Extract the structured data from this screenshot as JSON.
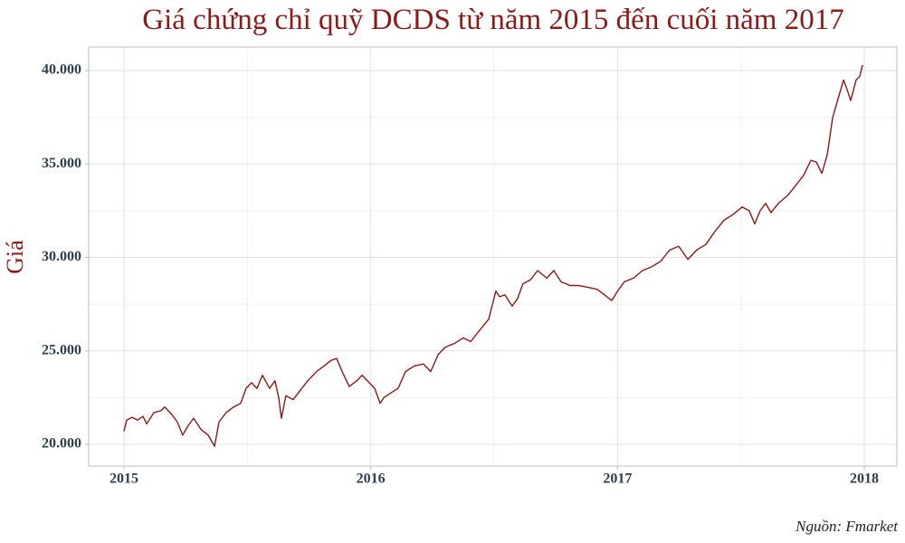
{
  "chart_data": {
    "type": "line",
    "title": "Giá chứng chỉ quỹ DCDS từ năm 2015 đến cuối năm 2017",
    "y_label": "Giá",
    "source": "Nguồn: Fmarket",
    "color": "#8b1a1a",
    "grid": true,
    "xlim": [
      2014.857,
      2018.132
    ],
    "xticks": [
      2015,
      2016,
      2017,
      2018
    ],
    "ylim": [
      18840,
      41260
    ],
    "yticks": [
      {
        "value": 20000,
        "label": "20.000"
      },
      {
        "value": 25000,
        "label": "25.000"
      },
      {
        "value": 30000,
        "label": "30.000"
      },
      {
        "value": 35000,
        "label": "35.000"
      },
      {
        "value": 40000,
        "label": "40.000"
      }
    ],
    "x": [
      2015.0,
      2015.011,
      2015.033,
      2015.055,
      2015.077,
      2015.092,
      2015.121,
      2015.15,
      2015.165,
      2015.194,
      2015.216,
      2015.238,
      2015.26,
      2015.282,
      2015.312,
      2015.341,
      2015.367,
      2015.385,
      2015.414,
      2015.444,
      2015.473,
      2015.495,
      2015.517,
      2015.539,
      2015.561,
      2015.59,
      2015.612,
      2015.627,
      2015.638,
      2015.656,
      2015.686,
      2015.715,
      2015.744,
      2015.781,
      2015.811,
      2015.84,
      2015.862,
      2015.884,
      2015.913,
      2015.943,
      2015.965,
      2015.994,
      2016.016,
      2016.038,
      2016.053,
      2016.075,
      2016.111,
      2016.141,
      2016.177,
      2016.214,
      2016.243,
      2016.273,
      2016.302,
      2016.339,
      2016.375,
      2016.405,
      2016.441,
      2016.478,
      2016.507,
      2016.522,
      2016.544,
      2016.573,
      2016.595,
      2016.617,
      2016.647,
      2016.676,
      2016.713,
      2016.742,
      2016.771,
      2016.808,
      2016.845,
      2016.881,
      2016.918,
      2016.947,
      2016.977,
      2017.0,
      2017.028,
      2017.065,
      2017.101,
      2017.138,
      2017.175,
      2017.211,
      2017.248,
      2017.285,
      2017.321,
      2017.358,
      2017.395,
      2017.432,
      2017.468,
      2017.505,
      2017.534,
      2017.556,
      2017.578,
      2017.6,
      2017.622,
      2017.652,
      2017.688,
      2017.725,
      2017.754,
      2017.784,
      2017.806,
      2017.828,
      2017.85,
      2017.872,
      2017.894,
      2017.916,
      2017.93,
      2017.945,
      2017.967,
      2017.982,
      2017.993
    ],
    "values": [
      20700,
      21300,
      21450,
      21300,
      21500,
      21100,
      21700,
      21800,
      22000,
      21600,
      21200,
      20500,
      21000,
      21400,
      20800,
      20500,
      19900,
      21200,
      21700,
      22000,
      22200,
      23000,
      23300,
      23000,
      23700,
      23000,
      23400,
      22500,
      21400,
      22600,
      22400,
      22900,
      23400,
      23900,
      24200,
      24500,
      24600,
      23900,
      23100,
      23400,
      23700,
      23300,
      23000,
      22200,
      22500,
      22700,
      23000,
      23900,
      24200,
      24300,
      23900,
      24800,
      25200,
      25400,
      25700,
      25500,
      26100,
      26700,
      28200,
      27900,
      28000,
      27400,
      27800,
      28600,
      28800,
      29300,
      28900,
      29300,
      28700,
      28500,
      28500,
      28400,
      28300,
      28000,
      27700,
      28200,
      28700,
      28900,
      29300,
      29500,
      29800,
      30400,
      30600,
      29900,
      30400,
      30700,
      31400,
      32000,
      32300,
      32700,
      32500,
      31800,
      32500,
      32900,
      32400,
      32900,
      33300,
      33900,
      34400,
      35200,
      35100,
      34500,
      35500,
      37500,
      38500,
      39500,
      39000,
      38400,
      39500,
      39700,
      40300
    ]
  }
}
